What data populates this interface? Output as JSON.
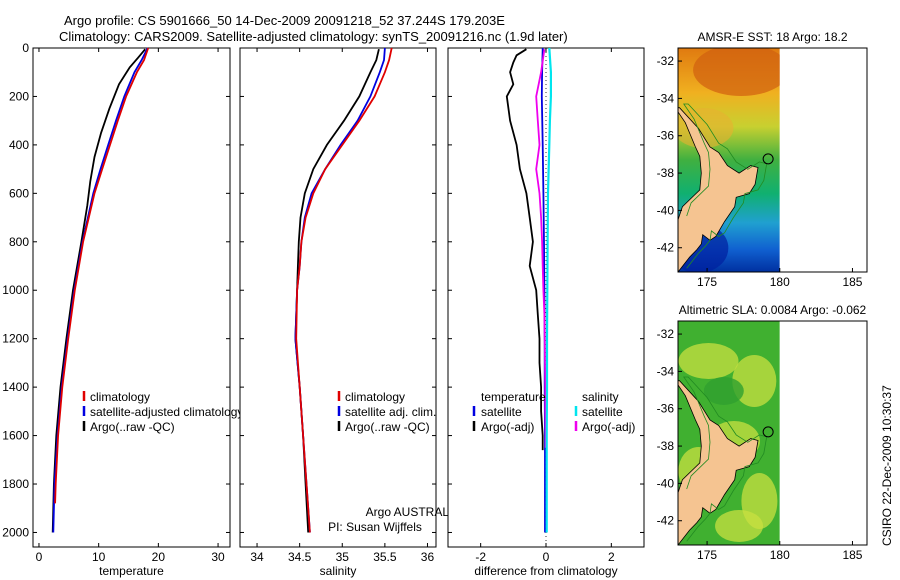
{
  "header": {
    "line1": "Argo profile: CS 5901666_50 14-Dec-2009 20091218_52 37.244S 179.203E",
    "line2": "Climatology: CARS2009. Satellite-adjusted climatology: synTS_20091216.nc (1.9d later)"
  },
  "side_label": "CSIRO 22-Dec-2009 10:30:37",
  "credit": {
    "line1": "Argo AUSTRALIA",
    "line2": "PI: Susan Wijffels"
  },
  "depth_ticks": [
    "0",
    "200",
    "400",
    "600",
    "800",
    "1000",
    "1200",
    "1400",
    "1600",
    "1800",
    "2000"
  ],
  "colors": {
    "climatology": "#e00000",
    "satellite": "#0000e0",
    "argo": "#000000",
    "cyan": "#00e5ee",
    "magenta": "#ee00ee",
    "coast": "#228b22",
    "land": "#f5c491"
  },
  "chart_data": [
    {
      "type": "line",
      "xlabel": "temperature",
      "xlim": [
        -1,
        32
      ],
      "ylim": [
        2060,
        0
      ],
      "x_ticks": [
        "0",
        "10",
        "20",
        "30"
      ],
      "legend": [
        "climatology",
        "satellite-adjusted climatology",
        "Argo(..raw -QC)"
      ],
      "series": [
        {
          "name": "climatology",
          "depth": [
            0,
            50,
            100,
            200,
            300,
            400,
            500,
            600,
            800,
            1000,
            1200,
            1400,
            1600,
            1800,
            1880
          ],
          "values": [
            18.3,
            17.6,
            16.4,
            14.6,
            13.2,
            11.9,
            10.6,
            9.3,
            7.4,
            6.0,
            4.9,
            3.9,
            3.2,
            2.8,
            2.7
          ]
        },
        {
          "name": "satellite-adjusted climatology",
          "depth": [
            0,
            50,
            100,
            200,
            300,
            400,
            500,
            600,
            800,
            1000,
            1200,
            1400,
            1600,
            1800,
            2000
          ],
          "values": [
            18.2,
            17.2,
            16.0,
            14.3,
            12.9,
            11.6,
            10.3,
            9.1,
            7.3,
            5.9,
            4.8,
            3.8,
            3.1,
            2.6,
            2.4
          ]
        },
        {
          "name": "Argo(..raw -QC)",
          "depth": [
            5,
            40,
            80,
            150,
            250,
            350,
            450,
            550,
            650,
            800,
            1000,
            1200,
            1400,
            1600,
            1800,
            2000
          ],
          "values": [
            17.8,
            16.6,
            15.2,
            13.4,
            11.8,
            10.4,
            9.3,
            8.6,
            8.1,
            7.1,
            5.7,
            4.6,
            3.6,
            2.9,
            2.5,
            2.3
          ]
        }
      ]
    },
    {
      "type": "line",
      "xlabel": "salinity",
      "xlim": [
        33.8,
        36.1
      ],
      "ylim": [
        2060,
        0
      ],
      "x_ticks": [
        "34",
        "34.5",
        "35",
        "35.5",
        "36"
      ],
      "legend": [
        "climatology",
        "satellite adj. clim.",
        "Argo(..raw -QC)"
      ],
      "series": [
        {
          "name": "climatology",
          "depth": [
            0,
            50,
            100,
            200,
            300,
            400,
            500,
            600,
            700,
            800,
            900,
            1000,
            1200,
            1400,
            1600,
            1800,
            2000
          ],
          "values": [
            35.58,
            35.55,
            35.5,
            35.38,
            35.2,
            35.0,
            34.8,
            34.66,
            34.57,
            34.52,
            34.5,
            34.47,
            34.46,
            34.5,
            34.54,
            34.58,
            34.62
          ]
        },
        {
          "name": "satellite adj. clim.",
          "depth": [
            0,
            50,
            100,
            200,
            300,
            400,
            500,
            600,
            700,
            800,
            900,
            1000,
            1200,
            1400,
            1600,
            1800,
            2000
          ],
          "values": [
            35.5,
            35.49,
            35.44,
            35.33,
            35.18,
            34.98,
            34.8,
            34.64,
            34.56,
            34.52,
            34.5,
            34.47,
            34.45,
            34.5,
            34.54,
            34.58,
            34.62
          ]
        },
        {
          "name": "Argo(..raw -QC)",
          "depth": [
            5,
            50,
            100,
            200,
            300,
            400,
            500,
            600,
            700,
            800,
            900,
            1000,
            1200,
            1400,
            1600,
            1800,
            2000
          ],
          "values": [
            35.43,
            35.4,
            35.33,
            35.2,
            35.02,
            34.82,
            34.66,
            34.56,
            34.51,
            34.49,
            34.48,
            34.47,
            34.45,
            34.5,
            34.54,
            34.57,
            34.6
          ]
        }
      ]
    },
    {
      "type": "line",
      "xlabel": "difference from climatology",
      "xlim": [
        -3,
        3
      ],
      "ylim": [
        2060,
        0
      ],
      "x_ticks": [
        "-2",
        "0",
        "2"
      ],
      "legend": [
        "temperature",
        "satellite",
        "Argo(-adj)",
        "salinity",
        "satellite",
        "Argo(-adj)"
      ],
      "series": [
        {
          "name": "temperature satellite",
          "depth": [
            0,
            100,
            200,
            400,
            600,
            800,
            1000,
            1200,
            1400,
            1600,
            1800,
            2000
          ],
          "values": [
            -0.1,
            -0.12,
            -0.13,
            -0.1,
            -0.08,
            -0.06,
            -0.05,
            -0.04,
            -0.04,
            -0.03,
            -0.03,
            -0.03
          ]
        },
        {
          "name": "temperature Argo(-adj)",
          "depth": [
            5,
            30,
            60,
            100,
            150,
            200,
            300,
            400,
            500,
            600,
            700,
            800,
            900,
            1000,
            1100,
            1200,
            1300,
            1400,
            1500,
            1600,
            1660
          ],
          "values": [
            -0.6,
            -0.9,
            -1.0,
            -1.1,
            -1.0,
            -1.2,
            -1.1,
            -0.9,
            -0.8,
            -0.6,
            -0.5,
            -0.4,
            -0.5,
            -0.3,
            -0.25,
            -0.2,
            -0.2,
            -0.15,
            -0.15,
            -0.1,
            -0.1
          ]
        },
        {
          "name": "salinity satellite",
          "depth": [
            0,
            100,
            200,
            300,
            400,
            600,
            800,
            1000,
            1200,
            1400,
            1600,
            1800,
            2000
          ],
          "values": [
            0.1,
            0.15,
            0.15,
            0.12,
            0.1,
            0.06,
            0.05,
            0.04,
            0.03,
            0.03,
            0.02,
            0.02,
            0.02
          ]
        },
        {
          "name": "salinity Argo(-adj)",
          "depth": [
            5,
            100,
            200,
            300,
            400,
            500,
            600,
            700,
            800,
            900,
            1000,
            1100,
            1200,
            1300,
            1400,
            1500,
            1600,
            1650
          ],
          "values": [
            -0.05,
            -0.15,
            -0.3,
            -0.25,
            -0.2,
            -0.3,
            -0.2,
            -0.15,
            -0.12,
            -0.1,
            -0.08,
            -0.05,
            -0.04,
            -0.03,
            -0.02,
            -0.02,
            -0.01,
            -0.01
          ]
        }
      ]
    },
    {
      "type": "heatmap",
      "title": "AMSR-E SST: 18 Argo: 18.2",
      "x_ticks": [
        "175",
        "180",
        "185"
      ],
      "y_ticks": [
        "-32",
        "-34",
        "-36",
        "-38",
        "-40",
        "-42"
      ],
      "xlim": [
        173,
        186
      ],
      "ylim": [
        -43.3,
        -31.3
      ]
    },
    {
      "type": "heatmap",
      "title": "Altimetric SLA: 0.0084 Argo: -0.062",
      "x_ticks": [
        "175",
        "180",
        "185"
      ],
      "y_ticks": [
        "-32",
        "-34",
        "-36",
        "-38",
        "-40",
        "-42"
      ],
      "xlim": [
        173,
        186
      ],
      "ylim": [
        -43.3,
        -31.3
      ]
    }
  ]
}
